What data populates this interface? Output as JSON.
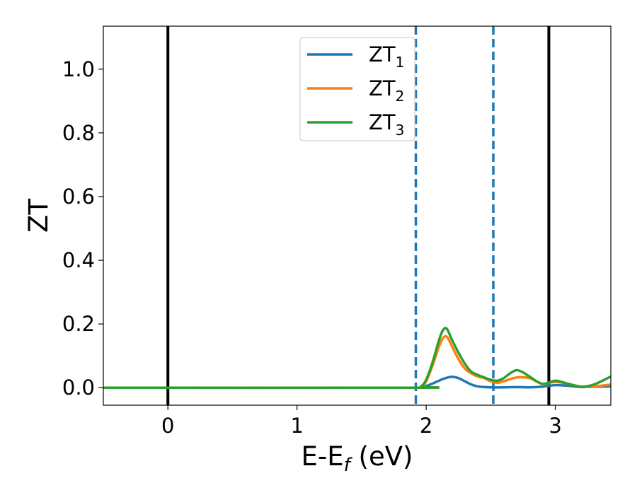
{
  "chart_data": {
    "type": "line",
    "xlabel": {
      "base": "E-E",
      "sub": "f",
      "suffix": " (eV)"
    },
    "ylabel": "ZT",
    "xlim": [
      -0.5,
      3.43
    ],
    "ylim": [
      -0.055,
      1.135
    ],
    "xticks": [
      0,
      1,
      2,
      3
    ],
    "xtick_labels": [
      "0",
      "1",
      "2",
      "3"
    ],
    "yticks": [
      0.0,
      0.2,
      0.4,
      0.6,
      0.8,
      1.0
    ],
    "ytick_labels": [
      "0.0",
      "0.2",
      "0.4",
      "0.6",
      "0.8",
      "1.0"
    ],
    "grid": false,
    "legend_position": "top-center",
    "vlines": [
      {
        "x": 0.0,
        "style": "solid",
        "color": "#000000"
      },
      {
        "x": 2.95,
        "style": "solid",
        "color": "#000000"
      },
      {
        "x": 1.92,
        "style": "dashed",
        "color": "#1f77b4"
      },
      {
        "x": 2.52,
        "style": "dashed",
        "color": "#1f77b4"
      }
    ],
    "series": [
      {
        "name": "ZT",
        "sub": "1",
        "color": "#1f77b4",
        "x": [
          -0.5,
          1.9,
          1.96,
          2.0,
          2.05,
          2.1,
          2.15,
          2.2,
          2.25,
          2.3,
          2.35,
          2.4,
          2.45,
          2.5,
          2.6,
          2.7,
          2.8,
          2.9,
          3.0,
          3.1,
          3.2,
          3.3,
          3.43
        ],
        "y": [
          0.0,
          0.0,
          0.001,
          0.005,
          0.013,
          0.022,
          0.03,
          0.034,
          0.03,
          0.02,
          0.01,
          0.004,
          0.002,
          0.001,
          0.001,
          0.002,
          0.001,
          0.003,
          0.008,
          0.006,
          0.002,
          0.003,
          0.004
        ]
      },
      {
        "name": "ZT",
        "sub": "2",
        "color": "#ff7f0e",
        "x": [
          -0.5,
          1.9,
          1.96,
          2.0,
          2.05,
          2.1,
          2.13,
          2.16,
          2.2,
          2.25,
          2.3,
          2.35,
          2.4,
          2.45,
          2.5,
          2.55,
          2.6,
          2.7,
          2.8,
          2.9,
          3.0,
          3.1,
          3.2,
          3.3,
          3.43
        ],
        "y": [
          0.0,
          0.0,
          0.003,
          0.02,
          0.07,
          0.13,
          0.155,
          0.16,
          0.13,
          0.09,
          0.06,
          0.045,
          0.035,
          0.03,
          0.02,
          0.015,
          0.02,
          0.032,
          0.03,
          0.012,
          0.018,
          0.012,
          0.003,
          0.004,
          0.01
        ]
      },
      {
        "name": "ZT",
        "sub": "3",
        "color": "#2ca02c",
        "x": [
          -0.5,
          1.9,
          1.96,
          2.0,
          2.05,
          2.1,
          2.13,
          2.16,
          2.2,
          2.25,
          2.3,
          2.35,
          2.4,
          2.45,
          2.5,
          2.55,
          2.6,
          2.65,
          2.7,
          2.75,
          2.8,
          2.9,
          3.0,
          3.1,
          3.2,
          3.3,
          3.43
        ],
        "y": [
          0.0,
          0.0,
          0.004,
          0.025,
          0.08,
          0.15,
          0.18,
          0.185,
          0.15,
          0.11,
          0.075,
          0.05,
          0.04,
          0.032,
          0.025,
          0.022,
          0.03,
          0.045,
          0.055,
          0.048,
          0.035,
          0.012,
          0.022,
          0.012,
          0.003,
          0.01,
          0.035
        ]
      }
    ]
  }
}
